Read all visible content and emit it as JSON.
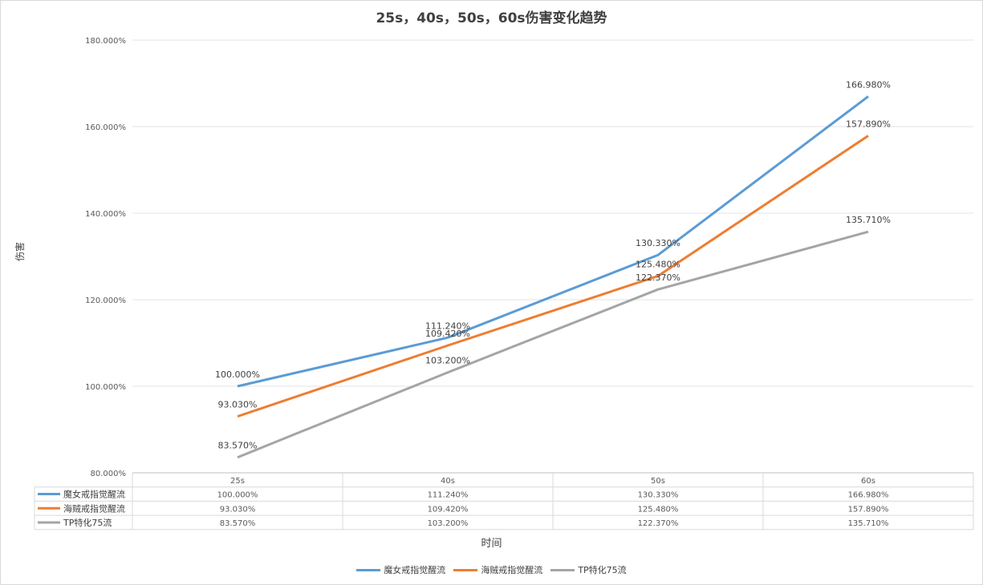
{
  "chart_data": {
    "type": "line",
    "title": "25s，40s，50s，60s伤害变化趋势",
    "xlabel": "时间",
    "ylabel": "伤害",
    "categories": [
      "25s",
      "40s",
      "50s",
      "60s"
    ],
    "ylim": [
      80,
      180
    ],
    "yticks": [
      "80.000%",
      "100.000%",
      "120.000%",
      "140.000%",
      "160.000%",
      "180.000%"
    ],
    "grid": true,
    "legend_position": "bottom",
    "data_table": true,
    "series": [
      {
        "name": "魔女戒指觉醒流",
        "color": "#5b9bd5",
        "values": [
          100.0,
          111.24,
          130.33,
          166.98
        ],
        "labels": [
          "100.000%",
          "111.240%",
          "130.330%",
          "166.980%"
        ]
      },
      {
        "name": "海贼戒指觉醒流",
        "color": "#ed7d31",
        "values": [
          93.03,
          109.42,
          125.48,
          157.89
        ],
        "labels": [
          "93.030%",
          "109.420%",
          "125.480%",
          "157.890%"
        ]
      },
      {
        "name": "TP特化75流",
        "color": "#a5a5a5",
        "values": [
          83.57,
          103.2,
          122.37,
          135.71
        ],
        "labels": [
          "83.570%",
          "103.200%",
          "122.370%",
          "135.710%"
        ]
      }
    ]
  }
}
